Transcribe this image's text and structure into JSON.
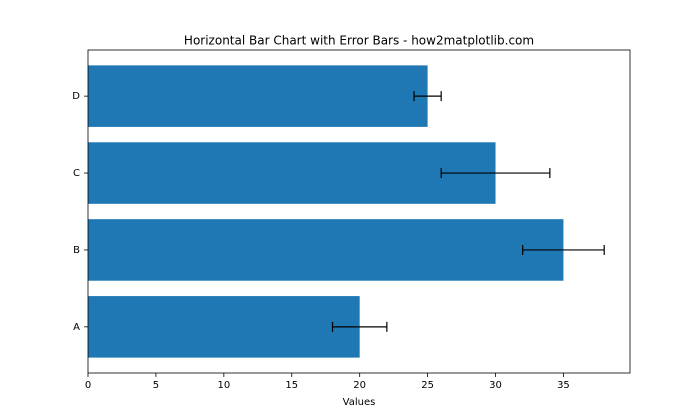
{
  "chart_data": {
    "type": "barh",
    "title": "Horizontal Bar Chart with Error Bars - how2matplotlib.com",
    "xlabel": "Values",
    "categories": [
      "A",
      "B",
      "C",
      "D"
    ],
    "values": [
      20,
      35,
      30,
      25
    ],
    "errors": [
      2,
      3,
      4,
      1
    ],
    "color": "#1f77b4",
    "error_color": "#000000",
    "xlim": [
      0,
      39.9
    ],
    "xticks": [
      0,
      5,
      10,
      15,
      20,
      25,
      30,
      35
    ],
    "grid": false
  }
}
